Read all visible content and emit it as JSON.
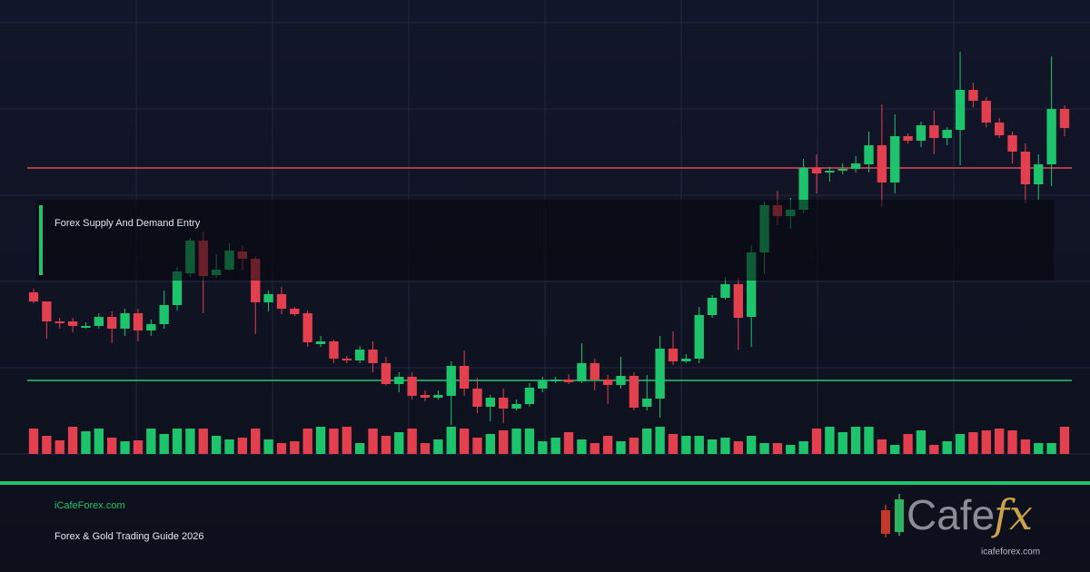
{
  "chart_data": {
    "type": "candlestick",
    "annotation": "Forex Supply And Demand Entry",
    "ylim": [
      0,
      475
    ],
    "up_color": "#1ec46c",
    "down_color": "#e2404f",
    "open": [
      178,
      168,
      146,
      146,
      139,
      141,
      151,
      138,
      155,
      136,
      143,
      164,
      199,
      235,
      197,
      203,
      223,
      215,
      167,
      176,
      160,
      155,
      121,
      124,
      105,
      103,
      115,
      100,
      77,
      85,
      65,
      62,
      64,
      97,
      72,
      52,
      62,
      50,
      55,
      72,
      80,
      82,
      80,
      100,
      82,
      76,
      86,
      52,
      61,
      116,
      102,
      105,
      153,
      172,
      187,
      151,
      222,
      274,
      262,
      269,
      315,
      310,
      312,
      314,
      319,
      340,
      299,
      350,
      345,
      362,
      348,
      357,
      401,
      389,
      365,
      351,
      333,
      297,
      319,
      380
    ],
    "high": [
      182,
      168,
      150,
      150,
      145,
      155,
      157,
      160,
      160,
      148,
      180,
      206,
      238,
      245,
      220,
      232,
      230,
      218,
      180,
      184,
      162,
      158,
      130,
      126,
      108,
      119,
      124,
      107,
      90,
      90,
      70,
      70,
      102,
      114,
      84,
      65,
      72,
      60,
      78,
      85,
      85,
      88,
      122,
      105,
      87,
      107,
      90,
      87,
      130,
      135,
      110,
      162,
      175,
      195,
      194,
      230,
      278,
      290,
      282,
      325,
      330,
      316,
      320,
      328,
      355,
      385,
      374,
      353,
      366,
      378,
      360,
      443,
      409,
      393,
      370,
      355,
      342,
      330,
      438,
      384
    ],
    "low": [
      166,
      127,
      138,
      134,
      138,
      138,
      122,
      130,
      124,
      130,
      138,
      158,
      195,
      155,
      194,
      202,
      202,
      132,
      157,
      154,
      152,
      118,
      118,
      100,
      100,
      100,
      90,
      75,
      68,
      60,
      58,
      60,
      32,
      64,
      45,
      36,
      34,
      48,
      52,
      68,
      78,
      77,
      78,
      70,
      55,
      72,
      48,
      48,
      40,
      98,
      100,
      100,
      150,
      170,
      115,
      118,
      198,
      252,
      248,
      265,
      287,
      300,
      308,
      310,
      310,
      272,
      287,
      342,
      338,
      330,
      340,
      318,
      382,
      360,
      348,
      320,
      276,
      280,
      295,
      350
    ],
    "close": [
      168,
      146,
      144,
      141,
      141,
      151,
      138,
      155,
      136,
      143,
      164,
      201,
      235,
      196,
      203,
      224,
      215,
      167,
      176,
      160,
      154,
      123,
      124,
      105,
      103,
      115,
      100,
      77,
      85,
      64,
      62,
      65,
      97,
      72,
      52,
      62,
      50,
      55,
      73,
      81,
      82,
      79,
      100,
      82,
      76,
      86,
      51,
      61,
      116,
      102,
      105,
      153,
      172,
      187,
      150,
      222,
      274,
      262,
      269,
      315,
      309,
      312,
      314,
      320,
      340,
      299,
      350,
      345,
      362,
      348,
      357,
      401,
      389,
      365,
      351,
      333,
      297,
      319,
      380,
      359
    ],
    "volume": [
      28,
      20,
      15,
      30,
      25,
      28,
      18,
      14,
      15,
      28,
      22,
      28,
      28,
      28,
      20,
      16,
      18,
      28,
      16,
      12,
      14,
      28,
      30,
      28,
      30,
      12,
      28,
      20,
      24,
      28,
      12,
      16,
      30,
      28,
      18,
      22,
      26,
      28,
      28,
      14,
      18,
      24,
      16,
      12,
      20,
      14,
      18,
      28,
      30,
      22,
      20,
      20,
      16,
      18,
      14,
      20,
      12,
      12,
      10,
      14,
      28,
      30,
      24,
      30,
      30,
      16,
      10,
      22,
      26,
      10,
      14,
      22,
      24,
      26,
      28,
      26,
      16,
      12,
      12,
      30
    ],
    "levels": [
      {
        "value": 315,
        "color": "#e04a55"
      },
      {
        "value": 81,
        "color": "#2bc46e"
      }
    ]
  },
  "footer": {
    "site": "iCafeForex.com",
    "subtitle": "Forex & Gold Trading Guide 2026"
  },
  "logo": {
    "word": "Cafe",
    "fx": "fx",
    "url": "icafeforex.com"
  }
}
